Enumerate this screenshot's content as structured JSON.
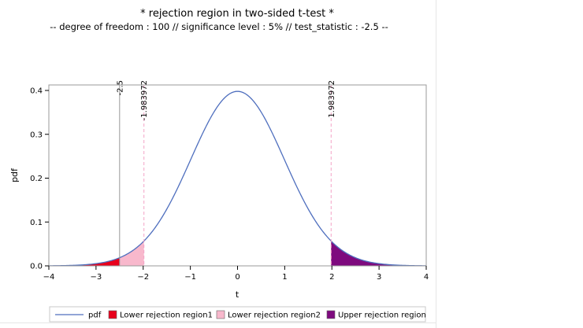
{
  "chart_data": {
    "type": "area",
    "title": "* rejection region in two-sided t-test *",
    "subtitle": "-- degree of freedom : 100 // significance level : 5% // test_statistic : -2.5 --",
    "xlabel": "t",
    "ylabel": "pdf",
    "xlim": [
      -4,
      4
    ],
    "ylim": [
      0,
      0.4
    ],
    "xticks": [
      -4,
      -3,
      -2,
      -1,
      0,
      1,
      2,
      3,
      4
    ],
    "yticks": [
      "0.0",
      "0.1",
      "0.2",
      "0.3",
      "0.4"
    ],
    "degrees_of_freedom": 100,
    "critical_value": 1.983972,
    "test_statistic": -2.5,
    "reference_lines": [
      {
        "x": -2.5,
        "label": "-2.5",
        "color": "#999999",
        "style": "solid"
      },
      {
        "x": -1.983972,
        "label": "-1.983972",
        "color": "#f4a3c7",
        "style": "dashed"
      },
      {
        "x": 1.983972,
        "label": "1.983972",
        "color": "#f4a3c7",
        "style": "dashed"
      }
    ],
    "series": [
      {
        "name": "pdf",
        "kind": "line",
        "color": "#4f6fbe"
      },
      {
        "name": "Lower rejection region1",
        "kind": "fill",
        "from": -4,
        "to": -2.5,
        "color": "#e8001c"
      },
      {
        "name": "Lower rejection region2",
        "kind": "fill",
        "from": -2.5,
        "to": -1.983972,
        "color": "#f8b8cc"
      },
      {
        "name": "Upper rejection region",
        "kind": "fill",
        "from": 1.983972,
        "to": 4,
        "color": "#7e0a7e"
      }
    ],
    "legend_position": "bottom",
    "grid": false
  }
}
